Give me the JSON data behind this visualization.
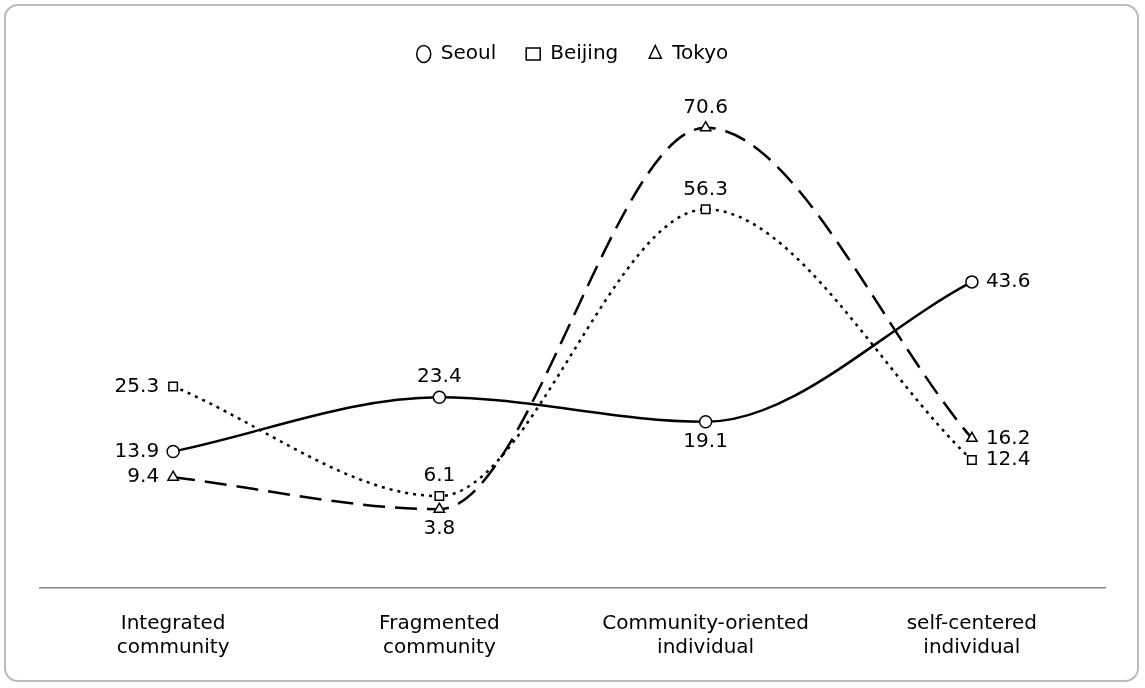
{
  "chart_data": {
    "type": "line",
    "categories": [
      "Integrated community",
      "Fragmented community",
      "Community-oriented individual",
      "self-centered individual"
    ],
    "series": [
      {
        "name": "Seoul",
        "color": "#000000",
        "marker": "circle",
        "line_style": "solid",
        "values": [
          13.9,
          23.4,
          19.1,
          43.6
        ]
      },
      {
        "name": "Beijing",
        "color": "#000000",
        "marker": "square",
        "line_style": "dotted",
        "values": [
          25.3,
          6.1,
          56.3,
          12.4
        ]
      },
      {
        "name": "Tokyo",
        "color": "#000000",
        "marker": "triangle",
        "line_style": "dashed",
        "values": [
          9.4,
          3.8,
          70.6,
          16.2
        ]
      }
    ],
    "tick_labels": "x",
    "grid": false,
    "legend": "top",
    "data_labels": true
  }
}
